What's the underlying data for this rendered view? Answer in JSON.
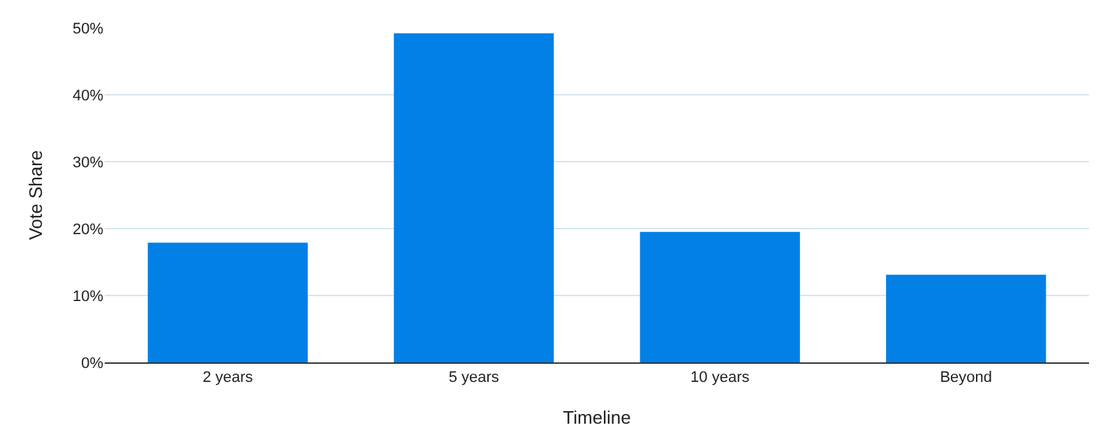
{
  "chart_data": {
    "type": "bar",
    "xlabel": "Timeline",
    "ylabel": "Vote Share",
    "categories": [
      "2 years",
      "5 years",
      "10 years",
      "Beyond"
    ],
    "values": [
      17.9,
      49.2,
      19.5,
      13.1
    ],
    "color": "#0280e6",
    "ylim": [
      0,
      50
    ],
    "yticks": [
      {
        "value": 0,
        "label": "0%"
      },
      {
        "value": 10,
        "label": "10%"
      },
      {
        "value": 20,
        "label": "20%"
      },
      {
        "value": 30,
        "label": "30%"
      },
      {
        "value": 40,
        "label": "40%"
      },
      {
        "value": 50,
        "label": "50%"
      }
    ],
    "grid": "y"
  }
}
